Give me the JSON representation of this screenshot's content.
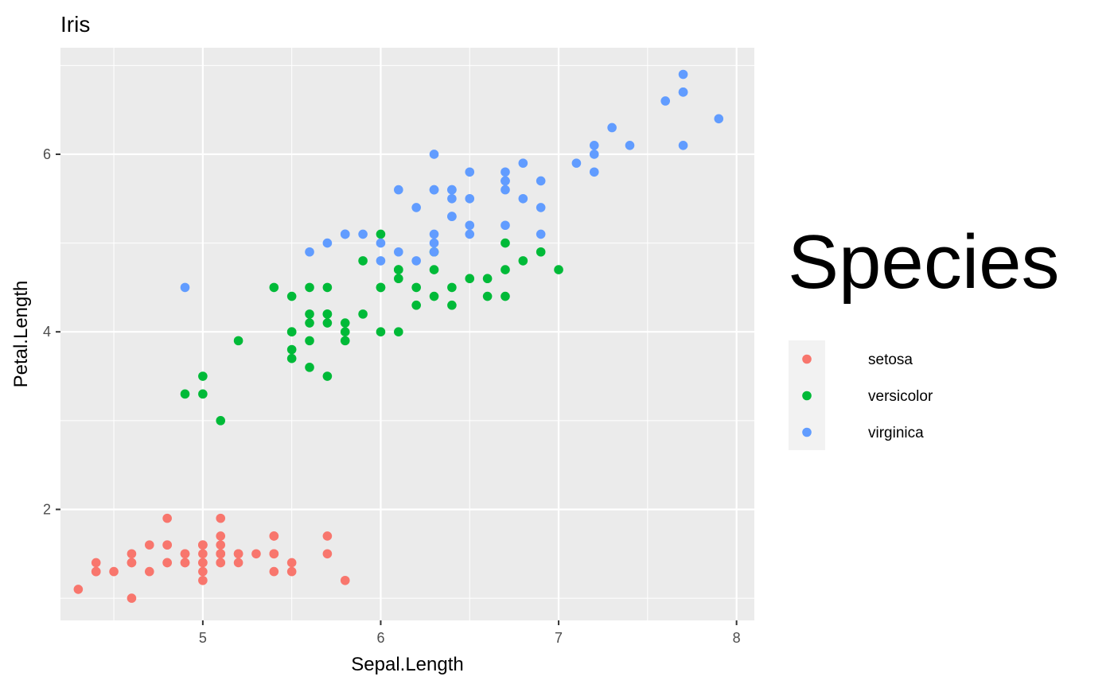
{
  "chart_data": {
    "type": "scatter",
    "title": "Iris",
    "xlabel": "Sepal.Length",
    "ylabel": "Petal.Length",
    "xlim": [
      4.2,
      8.1
    ],
    "ylim": [
      0.75,
      7.2
    ],
    "x_ticks": [
      5,
      6,
      7,
      8
    ],
    "y_ticks": [
      2,
      4,
      6
    ],
    "x_minor": [
      4.5,
      5.5,
      6.5,
      7.5
    ],
    "y_minor": [
      1,
      3,
      5,
      7
    ],
    "grid": true,
    "panel_background": "#EBEBEB",
    "grid_color": "#FFFFFF",
    "legend": {
      "title": "Species",
      "position": "right",
      "key_background": "#F2F2F2"
    },
    "series": [
      {
        "name": "setosa",
        "color": "#F8766D",
        "points": [
          [
            5.1,
            1.4
          ],
          [
            4.9,
            1.4
          ],
          [
            4.7,
            1.3
          ],
          [
            4.6,
            1.5
          ],
          [
            5.0,
            1.4
          ],
          [
            5.4,
            1.7
          ],
          [
            4.6,
            1.4
          ],
          [
            5.0,
            1.5
          ],
          [
            4.4,
            1.4
          ],
          [
            4.9,
            1.5
          ],
          [
            5.4,
            1.5
          ],
          [
            4.8,
            1.6
          ],
          [
            4.8,
            1.4
          ],
          [
            4.3,
            1.1
          ],
          [
            5.8,
            1.2
          ],
          [
            5.7,
            1.5
          ],
          [
            5.4,
            1.3
          ],
          [
            5.1,
            1.4
          ],
          [
            5.7,
            1.7
          ],
          [
            5.1,
            1.5
          ],
          [
            5.4,
            1.7
          ],
          [
            5.1,
            1.5
          ],
          [
            4.6,
            1.0
          ],
          [
            5.1,
            1.7
          ],
          [
            4.8,
            1.9
          ],
          [
            5.0,
            1.6
          ],
          [
            5.0,
            1.6
          ],
          [
            5.2,
            1.5
          ],
          [
            5.2,
            1.4
          ],
          [
            4.7,
            1.6
          ],
          [
            4.8,
            1.6
          ],
          [
            5.4,
            1.5
          ],
          [
            5.2,
            1.5
          ],
          [
            5.5,
            1.4
          ],
          [
            4.9,
            1.5
          ],
          [
            5.0,
            1.2
          ],
          [
            5.5,
            1.3
          ],
          [
            4.9,
            1.4
          ],
          [
            4.4,
            1.3
          ],
          [
            5.1,
            1.5
          ],
          [
            5.0,
            1.3
          ],
          [
            4.5,
            1.3
          ],
          [
            4.4,
            1.3
          ],
          [
            5.0,
            1.6
          ],
          [
            5.1,
            1.9
          ],
          [
            4.8,
            1.4
          ],
          [
            5.1,
            1.6
          ],
          [
            4.6,
            1.4
          ],
          [
            5.3,
            1.5
          ],
          [
            5.0,
            1.4
          ]
        ]
      },
      {
        "name": "versicolor",
        "color": "#00BA38",
        "points": [
          [
            7.0,
            4.7
          ],
          [
            6.4,
            4.5
          ],
          [
            6.9,
            4.9
          ],
          [
            5.5,
            4.0
          ],
          [
            6.5,
            4.6
          ],
          [
            5.7,
            4.5
          ],
          [
            6.3,
            4.7
          ],
          [
            4.9,
            3.3
          ],
          [
            6.6,
            4.6
          ],
          [
            5.2,
            3.9
          ],
          [
            5.0,
            3.5
          ],
          [
            5.9,
            4.2
          ],
          [
            6.0,
            4.0
          ],
          [
            6.1,
            4.7
          ],
          [
            5.6,
            3.6
          ],
          [
            6.7,
            4.4
          ],
          [
            5.6,
            4.5
          ],
          [
            5.8,
            4.1
          ],
          [
            6.2,
            4.5
          ],
          [
            5.6,
            3.9
          ],
          [
            5.9,
            4.8
          ],
          [
            6.1,
            4.0
          ],
          [
            6.3,
            4.9
          ],
          [
            6.1,
            4.7
          ],
          [
            6.4,
            4.3
          ],
          [
            6.6,
            4.4
          ],
          [
            6.8,
            4.8
          ],
          [
            6.7,
            5.0
          ],
          [
            6.0,
            4.5
          ],
          [
            5.7,
            3.5
          ],
          [
            5.5,
            3.8
          ],
          [
            5.5,
            3.7
          ],
          [
            5.8,
            3.9
          ],
          [
            6.0,
            5.1
          ],
          [
            5.4,
            4.5
          ],
          [
            6.0,
            4.5
          ],
          [
            6.7,
            4.7
          ],
          [
            6.3,
            4.4
          ],
          [
            5.6,
            4.1
          ],
          [
            5.5,
            4.0
          ],
          [
            5.5,
            4.4
          ],
          [
            6.1,
            4.6
          ],
          [
            5.8,
            4.0
          ],
          [
            5.0,
            3.3
          ],
          [
            5.6,
            4.2
          ],
          [
            5.7,
            4.2
          ],
          [
            5.7,
            4.2
          ],
          [
            6.2,
            4.3
          ],
          [
            5.1,
            3.0
          ],
          [
            5.7,
            4.1
          ]
        ]
      },
      {
        "name": "virginica",
        "color": "#619CFF",
        "points": [
          [
            6.3,
            6.0
          ],
          [
            5.8,
            5.1
          ],
          [
            7.1,
            5.9
          ],
          [
            6.3,
            5.6
          ],
          [
            6.5,
            5.8
          ],
          [
            7.6,
            6.6
          ],
          [
            4.9,
            4.5
          ],
          [
            7.3,
            6.3
          ],
          [
            6.7,
            5.8
          ],
          [
            7.2,
            6.1
          ],
          [
            6.5,
            5.1
          ],
          [
            6.4,
            5.3
          ],
          [
            6.8,
            5.5
          ],
          [
            5.7,
            5.0
          ],
          [
            5.8,
            5.1
          ],
          [
            6.4,
            5.3
          ],
          [
            6.5,
            5.5
          ],
          [
            7.7,
            6.7
          ],
          [
            7.7,
            6.9
          ],
          [
            6.0,
            5.0
          ],
          [
            6.9,
            5.7
          ],
          [
            5.6,
            4.9
          ],
          [
            7.7,
            6.7
          ],
          [
            6.3,
            4.9
          ],
          [
            6.7,
            5.7
          ],
          [
            7.2,
            6.0
          ],
          [
            6.2,
            4.8
          ],
          [
            6.1,
            4.9
          ],
          [
            6.4,
            5.6
          ],
          [
            7.2,
            5.8
          ],
          [
            7.4,
            6.1
          ],
          [
            7.9,
            6.4
          ],
          [
            6.4,
            5.6
          ],
          [
            6.3,
            5.1
          ],
          [
            6.1,
            5.6
          ],
          [
            7.7,
            6.1
          ],
          [
            6.3,
            5.6
          ],
          [
            6.4,
            5.5
          ],
          [
            6.0,
            4.8
          ],
          [
            6.9,
            5.4
          ],
          [
            6.7,
            5.6
          ],
          [
            6.9,
            5.1
          ],
          [
            5.8,
            5.1
          ],
          [
            6.8,
            5.9
          ],
          [
            6.7,
            5.7
          ],
          [
            6.7,
            5.2
          ],
          [
            6.3,
            5.0
          ],
          [
            6.5,
            5.2
          ],
          [
            6.2,
            5.4
          ],
          [
            5.9,
            5.1
          ]
        ]
      }
    ]
  }
}
